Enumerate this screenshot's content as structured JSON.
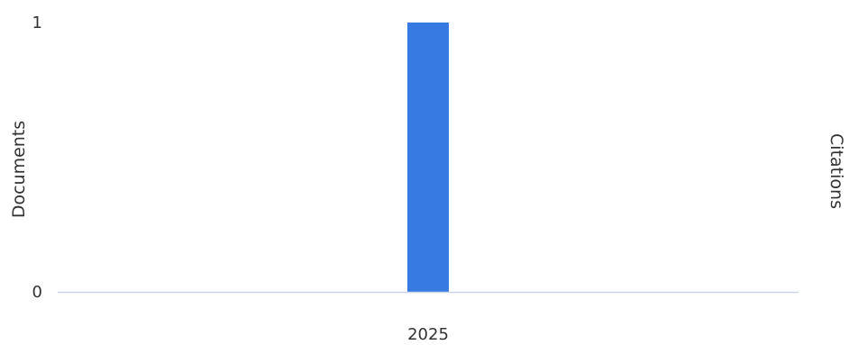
{
  "chart_data": {
    "type": "bar",
    "categories": [
      "2025"
    ],
    "series": [
      {
        "values": [
          1
        ],
        "color": "#377ae2"
      }
    ],
    "ylabel": "Documents",
    "y2label": "Citations",
    "ylim": [
      0,
      1
    ],
    "yticks": [
      "0",
      "1"
    ],
    "grid": false,
    "legend": "none",
    "baseline_color": "#ccd6eb"
  }
}
